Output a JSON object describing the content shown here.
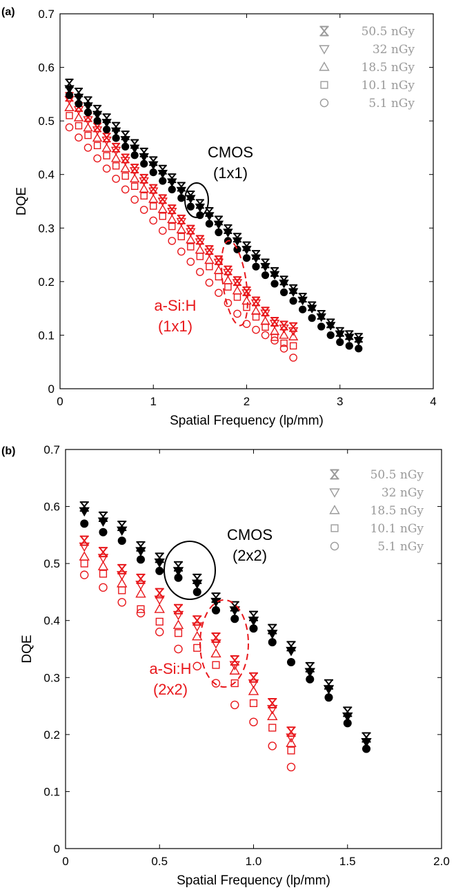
{
  "legend_symbols": [
    "x-mark",
    "triangle-down",
    "triangle-up",
    "square",
    "circle"
  ],
  "colors": {
    "cmos": "#000000",
    "asi": "#e8181c",
    "legend": "#9a9a9a"
  },
  "chart_data": [
    {
      "type": "scatter",
      "panel_label": "(a)",
      "xlabel": "Spatial Frequency (lp/mm)",
      "ylabel": "DQE",
      "xlim": [
        0,
        4
      ],
      "ylim": [
        0,
        0.7
      ],
      "xticks": [
        "0",
        "1",
        "2",
        "3",
        "4"
      ],
      "yticks": [
        "0",
        "0.1",
        "0.2",
        "0.3",
        "0.4",
        "0.5",
        "0.6",
        "0.7"
      ],
      "grid": false,
      "legend_position": "top-right",
      "legend": [
        "50.5 nGy",
        "32 nGy",
        "18.5 nGy",
        "10.1 nGy",
        "5.1 nGy"
      ],
      "annotations": {
        "cmos": [
          "CMOS",
          "(1x1)"
        ],
        "asi": [
          "a-Si:H",
          "(1x1)"
        ]
      },
      "x_cmos": [
        0.1,
        0.2,
        0.3,
        0.4,
        0.5,
        0.6,
        0.7,
        0.8,
        0.9,
        1.0,
        1.1,
        1.2,
        1.3,
        1.4,
        1.5,
        1.6,
        1.7,
        1.8,
        1.9,
        2.0,
        2.1,
        2.2,
        2.3,
        2.4,
        2.5,
        2.6,
        2.7,
        2.8,
        2.9,
        3.0,
        3.1,
        3.2
      ],
      "x_asi": [
        0.1,
        0.2,
        0.3,
        0.4,
        0.5,
        0.6,
        0.7,
        0.8,
        0.9,
        1.0,
        1.1,
        1.2,
        1.3,
        1.4,
        1.5,
        1.6,
        1.7,
        1.8,
        1.9,
        2.0,
        2.1,
        2.2,
        2.3,
        2.4,
        2.5
      ],
      "series": [
        {
          "name": "CMOS (1x1)",
          "detector": "cmos",
          "dose": "50.5 nGy",
          "marker": "x-mark",
          "values": [
            0.57,
            0.553,
            0.537,
            0.521,
            0.505,
            0.489,
            0.473,
            0.457,
            0.441,
            0.425,
            0.409,
            0.393,
            0.377,
            0.361,
            0.345,
            0.33,
            0.314,
            0.298,
            0.282,
            0.266,
            0.25,
            0.234,
            0.218,
            0.202,
            0.186,
            0.17,
            0.154,
            0.138,
            0.122,
            0.106,
            0.1,
            0.095
          ]
        },
        {
          "name": "CMOS (1x1)",
          "detector": "cmos",
          "dose": "32 nGy",
          "marker": "triangle-down",
          "values": [
            0.56,
            0.544,
            0.528,
            0.512,
            0.497,
            0.481,
            0.465,
            0.449,
            0.433,
            0.418,
            0.402,
            0.386,
            0.37,
            0.355,
            0.339,
            0.323,
            0.307,
            0.292,
            0.276,
            0.26,
            0.244,
            0.228,
            0.213,
            0.197,
            0.181,
            0.165,
            0.15,
            0.134,
            0.118,
            0.102,
            0.096,
            0.09
          ]
        },
        {
          "name": "CMOS (1x1)",
          "detector": "cmos",
          "dose": "5.1 nGy",
          "marker": "filled-circle",
          "values": [
            0.548,
            0.532,
            0.516,
            0.5,
            0.484,
            0.468,
            0.452,
            0.436,
            0.42,
            0.404,
            0.388,
            0.372,
            0.356,
            0.34,
            0.324,
            0.308,
            0.292,
            0.276,
            0.26,
            0.244,
            0.228,
            0.212,
            0.196,
            0.18,
            0.164,
            0.148,
            0.132,
            0.116,
            0.1,
            0.087,
            0.08,
            0.075
          ]
        },
        {
          "name": "a-Si:H (1x1)",
          "detector": "asi",
          "dose": "50.5 nGy",
          "marker": "x-mark",
          "values": [
            0.545,
            0.526,
            0.507,
            0.488,
            0.469,
            0.45,
            0.43,
            0.411,
            0.392,
            0.373,
            0.354,
            0.335,
            0.316,
            0.297,
            0.278,
            0.259,
            0.24,
            0.221,
            0.201,
            0.182,
            0.163,
            0.144,
            0.125,
            0.118,
            0.115
          ]
        },
        {
          "name": "a-Si:H (1x1)",
          "detector": "asi",
          "dose": "32 nGy",
          "marker": "triangle-down",
          "values": [
            0.54,
            0.521,
            0.502,
            0.483,
            0.464,
            0.445,
            0.426,
            0.407,
            0.388,
            0.369,
            0.35,
            0.331,
            0.312,
            0.293,
            0.274,
            0.255,
            0.236,
            0.217,
            0.198,
            0.179,
            0.16,
            0.141,
            0.122,
            0.113,
            0.108
          ]
        },
        {
          "name": "a-Si:H (1x1)",
          "detector": "asi",
          "dose": "18.5 nGy",
          "marker": "triangle-up",
          "values": [
            0.525,
            0.506,
            0.487,
            0.468,
            0.449,
            0.43,
            0.411,
            0.392,
            0.373,
            0.354,
            0.335,
            0.316,
            0.297,
            0.278,
            0.259,
            0.24,
            0.221,
            0.202,
            0.183,
            0.164,
            0.145,
            0.126,
            0.107,
            0.1,
            0.097
          ]
        },
        {
          "name": "a-Si:H (1x1)",
          "detector": "asi",
          "dose": "10.1 nGy",
          "marker": "square",
          "values": [
            0.51,
            0.491,
            0.473,
            0.454,
            0.435,
            0.416,
            0.397,
            0.378,
            0.36,
            0.341,
            0.322,
            0.303,
            0.284,
            0.265,
            0.247,
            0.228,
            0.209,
            0.19,
            0.171,
            0.152,
            0.134,
            0.115,
            0.096,
            0.085,
            0.08
          ]
        },
        {
          "name": "a-Si:H (1x1)",
          "detector": "asi",
          "dose": "5.1 nGy",
          "marker": "circle",
          "values": [
            0.488,
            0.469,
            0.45,
            0.43,
            0.411,
            0.392,
            0.372,
            0.353,
            0.334,
            0.314,
            0.295,
            0.276,
            0.256,
            0.237,
            0.218,
            0.198,
            0.179,
            0.16,
            0.14,
            0.121,
            0.11,
            0.1,
            0.09,
            0.075,
            0.058
          ]
        }
      ]
    },
    {
      "type": "scatter",
      "panel_label": "(b)",
      "xlabel": "Spatial Frequency (lp/mm)",
      "ylabel": "DQE",
      "xlim": [
        0,
        2.0
      ],
      "ylim": [
        0,
        0.7
      ],
      "xticks": [
        "0",
        "0.5",
        "1.0",
        "1.5",
        "2.0"
      ],
      "yticks": [
        "0",
        "0.1",
        "0.2",
        "0.3",
        "0.4",
        "0.5",
        "0.6",
        "0.7"
      ],
      "grid": false,
      "legend_position": "top-right",
      "legend": [
        "50.5 nGy",
        "32 nGy",
        "18.5 nGy",
        "10.1 nGy",
        "5.1 nGy"
      ],
      "annotations": {
        "cmos": [
          "CMOS",
          "(2x2)"
        ],
        "asi": [
          "a-Si:H",
          "(2x2)"
        ]
      },
      "x_cmos": [
        0.1,
        0.2,
        0.3,
        0.4,
        0.5,
        0.6,
        0.7,
        0.8,
        0.9,
        1.0,
        1.1,
        1.2,
        1.3,
        1.4,
        1.5,
        1.6
      ],
      "x_asi": [
        0.1,
        0.2,
        0.3,
        0.4,
        0.5,
        0.6,
        0.7,
        0.8,
        0.9,
        1.0,
        1.1,
        1.2
      ],
      "series": [
        {
          "name": "CMOS (2x2)",
          "detector": "cmos",
          "dose": "50.5 nGy",
          "marker": "x-mark",
          "values": [
            0.6,
            0.582,
            0.566,
            0.53,
            0.51,
            0.495,
            0.473,
            0.44,
            0.425,
            0.408,
            0.385,
            0.355,
            0.318,
            0.288,
            0.24,
            0.195
          ]
        },
        {
          "name": "CMOS (2x2)",
          "detector": "cmos",
          "dose": "32 nGy",
          "marker": "triangle-down",
          "values": [
            0.592,
            0.574,
            0.558,
            0.522,
            0.502,
            0.487,
            0.465,
            0.433,
            0.418,
            0.4,
            0.377,
            0.347,
            0.31,
            0.28,
            0.232,
            0.187
          ]
        },
        {
          "name": "CMOS (2x2)",
          "detector": "cmos",
          "dose": "5.1 nGy",
          "marker": "filled-circle",
          "values": [
            0.57,
            0.555,
            0.54,
            0.507,
            0.487,
            0.475,
            0.45,
            0.418,
            0.403,
            0.386,
            0.362,
            0.327,
            0.297,
            0.265,
            0.22,
            0.175
          ]
        },
        {
          "name": "a-Si:H (2x2)",
          "detector": "asi",
          "dose": "50.5 nGy",
          "marker": "x-mark",
          "values": [
            0.54,
            0.52,
            0.49,
            0.473,
            0.448,
            0.42,
            0.4,
            0.37,
            0.33,
            0.3,
            0.255,
            0.205
          ]
        },
        {
          "name": "a-Si:H (2x2)",
          "detector": "asi",
          "dose": "32 nGy",
          "marker": "triangle-down",
          "values": [
            0.53,
            0.51,
            0.48,
            0.463,
            0.437,
            0.41,
            0.39,
            0.36,
            0.322,
            0.29,
            0.245,
            0.195
          ]
        },
        {
          "name": "a-Si:H (2x2)",
          "detector": "asi",
          "dose": "18.5 nGy",
          "marker": "triangle-up",
          "values": [
            0.512,
            0.495,
            0.465,
            0.447,
            0.42,
            0.392,
            0.372,
            0.342,
            0.312,
            0.276,
            0.232,
            0.185
          ]
        },
        {
          "name": "a-Si:H (2x2)",
          "detector": "asi",
          "dose": "10.1 nGy",
          "marker": "square",
          "values": [
            0.5,
            0.482,
            0.453,
            0.42,
            0.398,
            0.378,
            0.352,
            0.322,
            0.29,
            0.255,
            0.212,
            0.172
          ]
        },
        {
          "name": "a-Si:H (2x2)",
          "detector": "asi",
          "dose": "5.1 nGy",
          "marker": "circle",
          "values": [
            0.48,
            0.458,
            0.432,
            0.413,
            0.38,
            0.35,
            0.32,
            0.29,
            0.252,
            0.222,
            0.18,
            0.143
          ]
        }
      ]
    }
  ]
}
